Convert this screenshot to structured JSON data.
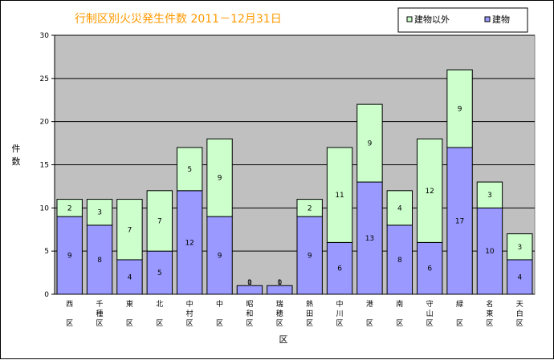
{
  "chart_data": {
    "type": "bar",
    "stacked": true,
    "title": "行制区別火災発生件数 2011－12月31日",
    "xlabel": "区",
    "ylabel": "件数",
    "ylim": [
      0,
      30
    ],
    "yticks": [
      0,
      5,
      10,
      15,
      20,
      25,
      30
    ],
    "grid": true,
    "legend_position": "top-right",
    "categories": [
      "西区",
      "千種区",
      "東区",
      "北区",
      "中村区",
      "中区",
      "昭和区",
      "瑞穂区",
      "熱田区",
      "中川区",
      "港区",
      "南区",
      "守山区",
      "緑区",
      "名東区",
      "天白区"
    ],
    "series": [
      {
        "name": "建物",
        "color": "#9999ff",
        "values": [
          9,
          8,
          4,
          5,
          12,
          9,
          1,
          1,
          9,
          6,
          13,
          8,
          6,
          17,
          10,
          4
        ]
      },
      {
        "name": "建物以外",
        "color": "#ccffcc",
        "values": [
          2,
          3,
          7,
          7,
          5,
          9,
          0,
          0,
          2,
          11,
          9,
          4,
          12,
          9,
          3,
          3
        ]
      }
    ],
    "plot_background": "#c0c0c0"
  }
}
